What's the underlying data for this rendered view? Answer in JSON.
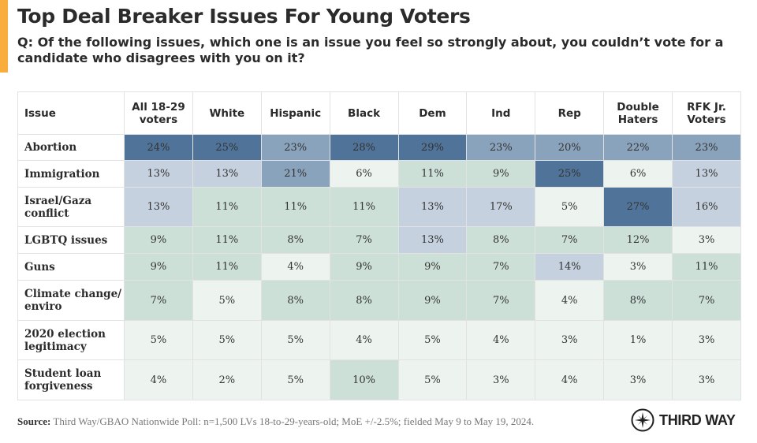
{
  "header": {
    "title": "Top Deal Breaker Issues For Young Voters",
    "subtitle": "Q: Of the following issues, which one is an issue you feel so strongly about, you couldn’t vote for a candidate who disagrees with you on it?"
  },
  "colors": {
    "accent": "#f9ad3c",
    "scale": {
      "ge24": "#4f7399",
      "18to23": "#8aa3bd",
      "13to17": "#c5d1de",
      "7to12": "#cde0d8",
      "le6": "#edf4f0"
    }
  },
  "chart_data": {
    "type": "table",
    "title": "Top Deal Breaker Issues For Young Voters",
    "row_header": "Issue",
    "columns": [
      "All 18-29 voters",
      "White",
      "Hispanic",
      "Black",
      "Dem",
      "Ind",
      "Rep",
      "Double Haters",
      "RFK Jr. Voters"
    ],
    "rows": [
      {
        "issue": "Abortion",
        "values": [
          24,
          25,
          23,
          28,
          29,
          23,
          20,
          22,
          23
        ]
      },
      {
        "issue": "Immigration",
        "values": [
          13,
          13,
          21,
          6,
          11,
          9,
          25,
          6,
          13
        ]
      },
      {
        "issue": "Israel/Gaza conflict",
        "values": [
          13,
          11,
          11,
          11,
          13,
          17,
          5,
          27,
          16
        ]
      },
      {
        "issue": "LGBTQ issues",
        "values": [
          9,
          11,
          8,
          7,
          13,
          8,
          7,
          12,
          3
        ]
      },
      {
        "issue": "Guns",
        "values": [
          9,
          11,
          4,
          9,
          9,
          7,
          14,
          3,
          11
        ]
      },
      {
        "issue": "Climate change/ enviro",
        "values": [
          7,
          5,
          8,
          8,
          9,
          7,
          4,
          8,
          7
        ]
      },
      {
        "issue": "2020 election legitimacy",
        "values": [
          5,
          5,
          5,
          4,
          5,
          4,
          3,
          1,
          3
        ]
      },
      {
        "issue": "Student loan forgiveness",
        "values": [
          4,
          2,
          5,
          10,
          5,
          3,
          4,
          3,
          3
        ]
      }
    ],
    "unit": "%"
  },
  "footer": {
    "source_label": "Source:",
    "source_text": "Third Way/GBAO Nationwide Poll: n=1,500 LVs 18-to-29-years-old; MoE +/-2.5%; fielded May 9 to May 19, 2024.",
    "logo_text": "THIRD WAY"
  }
}
